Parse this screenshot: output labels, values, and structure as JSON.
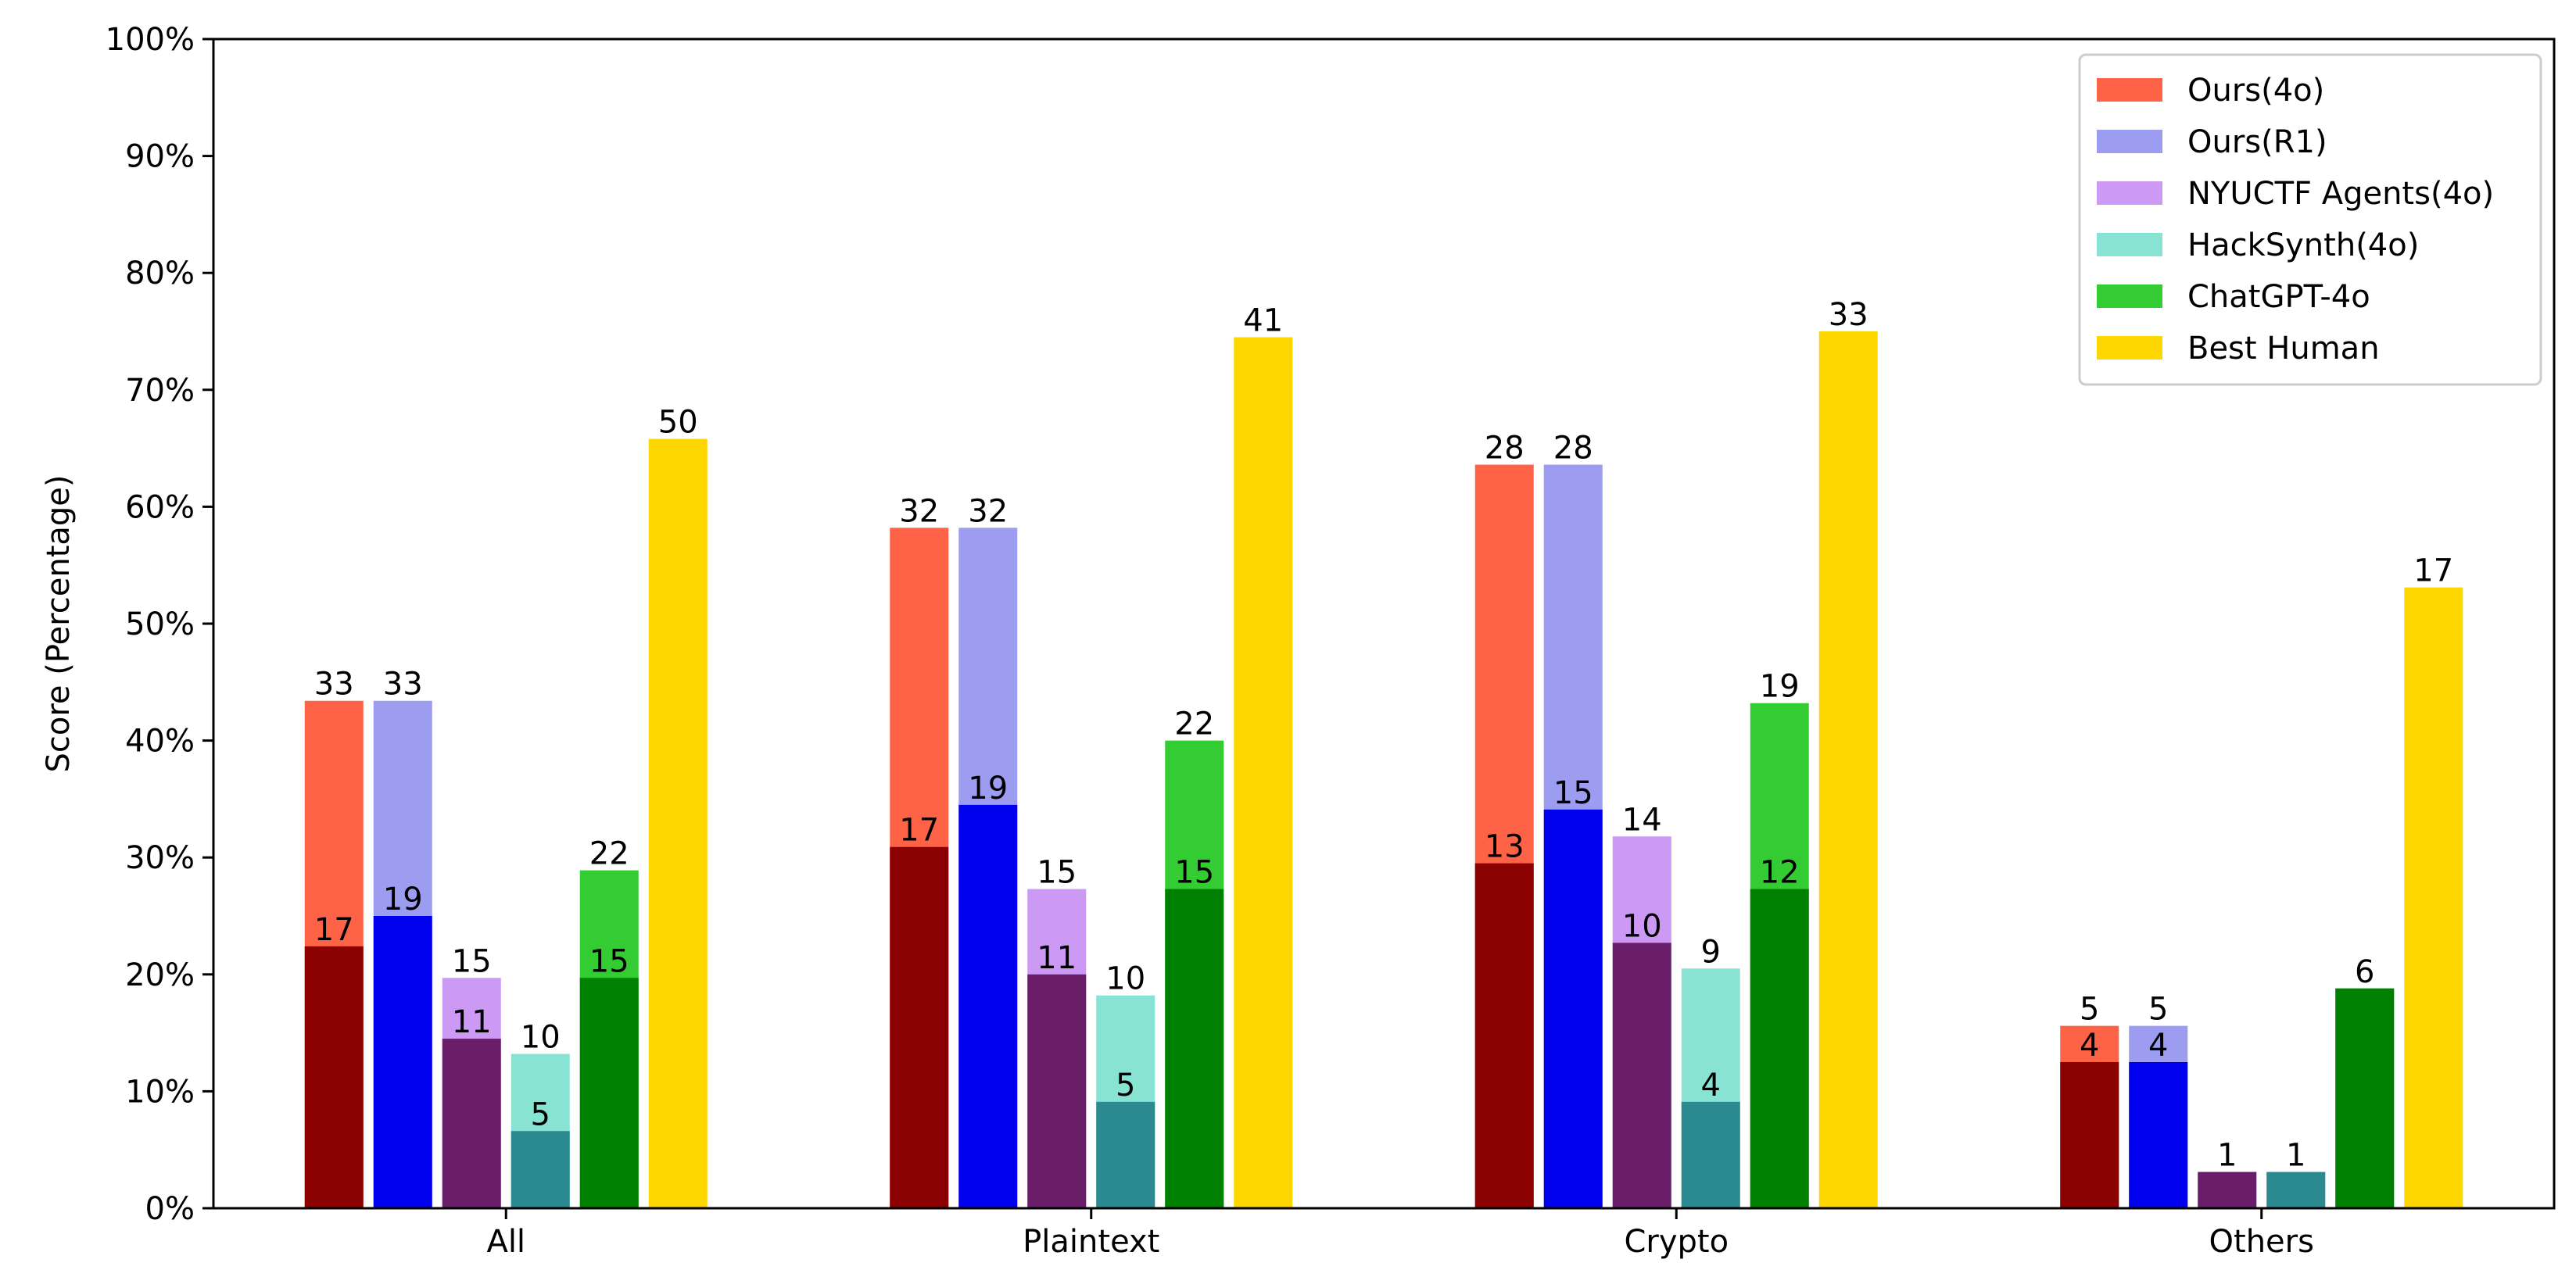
{
  "chart_data": {
    "type": "bar",
    "ylabel": "Score (Percentage)",
    "ylim": [
      0,
      100
    ],
    "yticks": [
      "0%",
      "10%",
      "20%",
      "30%",
      "40%",
      "50%",
      "60%",
      "70%",
      "80%",
      "90%",
      "100%"
    ],
    "categories": [
      "All",
      "Plaintext",
      "Crypto",
      "Others"
    ],
    "legend_position": "top-right",
    "grid": false,
    "series": [
      {
        "name": "Ours(4o)",
        "color": "#ff6347",
        "dark_color": "#8b0000",
        "values": [
          43.4,
          58.2,
          63.6,
          15.6
        ],
        "inner_values": [
          22.4,
          30.9,
          29.5,
          12.5
        ],
        "labels": [
          "33",
          "32",
          "28",
          "5"
        ],
        "inner_labels": [
          "17",
          "17",
          "13",
          "4"
        ]
      },
      {
        "name": "Ours(R1)",
        "color": "#9c9cf0",
        "dark_color": "#0000ee",
        "values": [
          43.4,
          58.2,
          63.6,
          15.6
        ],
        "inner_values": [
          25.0,
          34.5,
          34.1,
          12.5
        ],
        "labels": [
          "33",
          "32",
          "28",
          "5"
        ],
        "inner_labels": [
          "19",
          "19",
          "15",
          "4"
        ]
      },
      {
        "name": "NYUCTF Agents(4o)",
        "color": "#cc99f5",
        "dark_color": "#6a1e6a",
        "values": [
          19.7,
          27.3,
          31.8,
          3.1
        ],
        "inner_values": [
          14.5,
          20.0,
          22.7,
          3.1
        ],
        "labels": [
          "15",
          "15",
          "14",
          "1"
        ],
        "inner_labels": [
          "11",
          "11",
          "10",
          ""
        ]
      },
      {
        "name": "HackSynth(4o)",
        "color": "#88e3d3",
        "dark_color": "#2a8a8f",
        "values": [
          13.2,
          18.2,
          20.5,
          3.1
        ],
        "inner_values": [
          6.6,
          9.1,
          9.1,
          3.1
        ],
        "labels": [
          "10",
          "10",
          "9",
          "1"
        ],
        "inner_labels": [
          "5",
          "5",
          "4",
          ""
        ]
      },
      {
        "name": "ChatGPT-4o",
        "color": "#33cc33",
        "dark_color": "#008000",
        "values": [
          28.9,
          40.0,
          43.2,
          18.8
        ],
        "inner_values": [
          19.7,
          27.3,
          27.3,
          18.8
        ],
        "labels": [
          "22",
          "22",
          "19",
          "6"
        ],
        "inner_labels": [
          "15",
          "15",
          "12",
          ""
        ]
      },
      {
        "name": "Best Human",
        "color": "#ffd700",
        "dark_color": "#ffd700",
        "values": [
          65.8,
          74.5,
          75.0,
          53.1
        ],
        "inner_values": [
          0,
          0,
          0,
          0
        ],
        "labels": [
          "50",
          "41",
          "33",
          "17"
        ],
        "inner_labels": [
          "",
          "",
          "",
          ""
        ]
      }
    ]
  }
}
